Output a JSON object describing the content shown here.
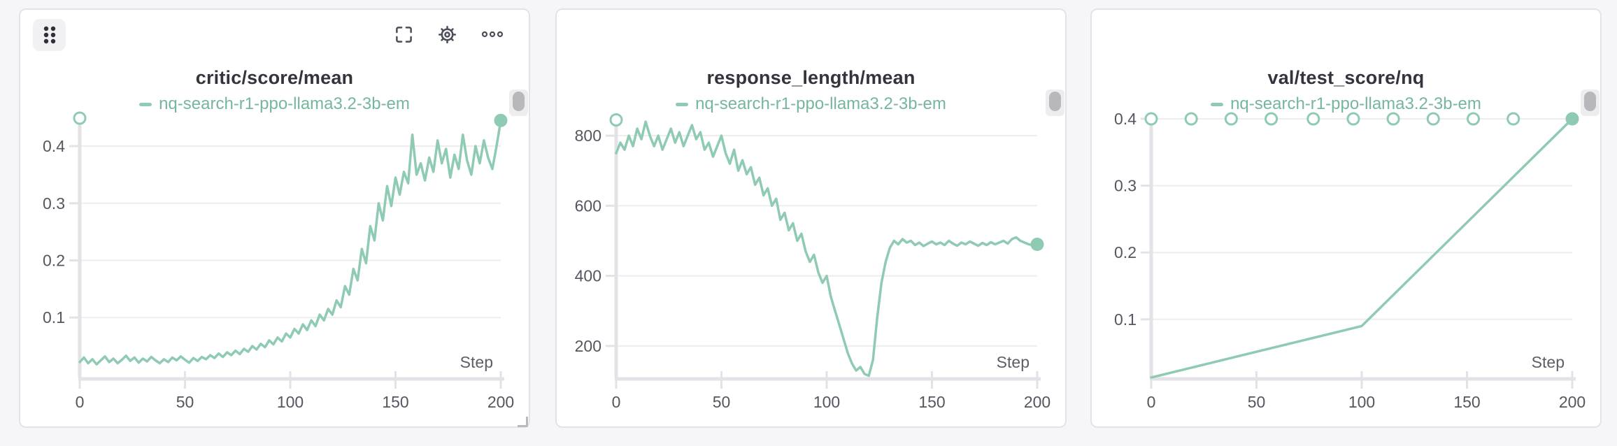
{
  "app": "run-metrics-dashboard",
  "run_name": "nq-search-r1-ppo-llama3.2-3b-em",
  "colors": {
    "line": "#8ecbb2",
    "legend_text": "#76b69d",
    "grid": "#ededf0",
    "axis": "#e3e3e7",
    "tick_label": "#55565f",
    "step_label": "#5d5e67",
    "title": "#33343c",
    "icon": "#4b4d57",
    "page_bg": "#f6f6f8",
    "panel_bg": "#ffffff",
    "panel_border": "#e3e3e7",
    "handle_bg": "#f1f1f3",
    "handle_dots": "#2f3037",
    "scroll_track": "#ededef",
    "scroll_thumb": "#b7b7bc"
  },
  "toolbar": {
    "drag_handle": "grip-handle",
    "fullscreen": "fullscreen-button",
    "settings": "settings-button",
    "more": "more-options-button"
  },
  "panels": [
    {
      "title": "critic/score/mean",
      "legend": "nq-search-r1-ppo-llama3.2-3b-em"
    },
    {
      "title": "response_length/mean",
      "legend": "nq-search-r1-ppo-llama3.2-3b-em"
    },
    {
      "title": "val/test_score/nq",
      "legend": "nq-search-r1-ppo-llama3.2-3b-em"
    }
  ],
  "chart_data": [
    {
      "type": "line",
      "title": "critic/score/mean",
      "xlabel": "Step",
      "legend": [
        "nq-search-r1-ppo-llama3.2-3b-em"
      ],
      "legend_position": "top",
      "grid": "horizontal",
      "xlim": [
        0,
        200
      ],
      "ylim": [
        -0.005,
        0.449
      ],
      "x_ticks": [
        0,
        50,
        100,
        150,
        200
      ],
      "y_ticks": [
        0.1,
        0.2,
        0.3,
        0.4
      ],
      "y_tick_labels": [
        "0.1",
        "0.2",
        "0.3",
        "0.4"
      ],
      "x": [
        0,
        2,
        4,
        6,
        8,
        10,
        12,
        14,
        16,
        18,
        20,
        22,
        24,
        26,
        28,
        30,
        32,
        34,
        36,
        38,
        40,
        42,
        44,
        46,
        48,
        50,
        52,
        54,
        56,
        58,
        60,
        62,
        64,
        66,
        68,
        70,
        72,
        74,
        76,
        78,
        80,
        82,
        84,
        86,
        88,
        90,
        92,
        94,
        96,
        98,
        100,
        102,
        104,
        106,
        108,
        110,
        112,
        114,
        116,
        118,
        120,
        122,
        124,
        126,
        128,
        130,
        132,
        134,
        136,
        138,
        140,
        142,
        144,
        146,
        148,
        150,
        152,
        154,
        156,
        158,
        160,
        162,
        164,
        166,
        168,
        170,
        172,
        174,
        176,
        178,
        180,
        182,
        184,
        186,
        188,
        190,
        192,
        194,
        196,
        198,
        200
      ],
      "values": [
        0.022,
        0.03,
        0.02,
        0.027,
        0.018,
        0.025,
        0.032,
        0.022,
        0.028,
        0.02,
        0.026,
        0.033,
        0.024,
        0.03,
        0.021,
        0.028,
        0.023,
        0.031,
        0.025,
        0.02,
        0.027,
        0.022,
        0.03,
        0.025,
        0.032,
        0.026,
        0.021,
        0.029,
        0.024,
        0.031,
        0.027,
        0.034,
        0.029,
        0.037,
        0.031,
        0.039,
        0.034,
        0.042,
        0.036,
        0.045,
        0.04,
        0.05,
        0.044,
        0.054,
        0.048,
        0.06,
        0.053,
        0.065,
        0.058,
        0.072,
        0.065,
        0.08,
        0.072,
        0.088,
        0.078,
        0.095,
        0.085,
        0.105,
        0.095,
        0.115,
        0.105,
        0.13,
        0.118,
        0.155,
        0.14,
        0.185,
        0.165,
        0.22,
        0.195,
        0.26,
        0.235,
        0.3,
        0.27,
        0.33,
        0.295,
        0.345,
        0.315,
        0.355,
        0.335,
        0.42,
        0.35,
        0.37,
        0.34,
        0.38,
        0.355,
        0.41,
        0.37,
        0.395,
        0.345,
        0.385,
        0.36,
        0.42,
        0.375,
        0.35,
        0.4,
        0.37,
        0.41,
        0.38,
        0.36,
        0.4,
        0.445
      ],
      "markers": {
        "hollow": [
          [
            0,
            0.449
          ]
        ],
        "filled": [
          [
            200,
            0.445
          ]
        ]
      }
    },
    {
      "type": "line",
      "title": "response_length/mean",
      "xlabel": "Step",
      "legend": [
        "nq-search-r1-ppo-llama3.2-3b-em"
      ],
      "legend_position": "top",
      "grid": "horizontal",
      "xlim": [
        0,
        200
      ],
      "ylim": [
        110,
        850
      ],
      "x_ticks": [
        0,
        50,
        100,
        150,
        200
      ],
      "y_ticks": [
        200,
        400,
        600,
        800
      ],
      "y_tick_labels": [
        "200",
        "400",
        "600",
        "800"
      ],
      "x": [
        0,
        2,
        4,
        6,
        8,
        10,
        12,
        14,
        16,
        18,
        20,
        22,
        24,
        26,
        28,
        30,
        32,
        34,
        36,
        38,
        40,
        42,
        44,
        46,
        48,
        50,
        52,
        54,
        56,
        58,
        60,
        62,
        64,
        66,
        68,
        70,
        72,
        74,
        76,
        78,
        80,
        82,
        84,
        86,
        88,
        90,
        92,
        94,
        96,
        98,
        100,
        102,
        104,
        106,
        108,
        110,
        112,
        114,
        116,
        118,
        120,
        122,
        124,
        126,
        128,
        130,
        132,
        134,
        136,
        138,
        140,
        142,
        144,
        146,
        148,
        150,
        152,
        154,
        156,
        158,
        160,
        162,
        164,
        166,
        168,
        170,
        172,
        174,
        176,
        178,
        180,
        182,
        184,
        186,
        188,
        190,
        192,
        194,
        196,
        198,
        200
      ],
      "values": [
        750,
        780,
        760,
        800,
        770,
        820,
        790,
        840,
        800,
        770,
        800,
        760,
        790,
        820,
        780,
        810,
        770,
        800,
        830,
        790,
        810,
        760,
        780,
        740,
        770,
        800,
        750,
        720,
        760,
        700,
        730,
        690,
        710,
        660,
        680,
        630,
        650,
        600,
        620,
        560,
        580,
        530,
        550,
        500,
        520,
        470,
        440,
        460,
        410,
        380,
        400,
        340,
        300,
        260,
        220,
        180,
        150,
        130,
        140,
        120,
        115,
        160,
        280,
        380,
        440,
        480,
        500,
        490,
        505,
        495,
        500,
        488,
        495,
        485,
        492,
        498,
        490,
        495,
        488,
        500,
        492,
        486,
        495,
        490,
        498,
        492,
        486,
        494,
        488,
        496,
        490,
        495,
        500,
        492,
        505,
        510,
        500,
        495,
        490,
        488,
        490
      ],
      "markers": {
        "hollow": [
          [
            0,
            845
          ]
        ],
        "filled": [
          [
            200,
            490
          ]
        ]
      }
    },
    {
      "type": "line",
      "title": "val/test_score/nq",
      "xlabel": "Step",
      "legend": [
        "nq-search-r1-ppo-llama3.2-3b-em"
      ],
      "legend_position": "top",
      "grid": "horizontal",
      "xlim": [
        0,
        200
      ],
      "ylim": [
        0.013,
        0.401
      ],
      "x_ticks": [
        0,
        50,
        100,
        150,
        200
      ],
      "y_ticks": [
        0.1,
        0.2,
        0.3,
        0.4
      ],
      "y_tick_labels": [
        "0.1",
        "0.2",
        "0.3",
        "0.4"
      ],
      "x": [
        0,
        100,
        200
      ],
      "values": [
        0.013,
        0.09,
        0.4
      ],
      "markers": {
        "hollow": [
          [
            0,
            0.4
          ],
          [
            19,
            0.4
          ],
          [
            38,
            0.4
          ],
          [
            57,
            0.4
          ],
          [
            77,
            0.4
          ],
          [
            96,
            0.4
          ],
          [
            115,
            0.4
          ],
          [
            134,
            0.4
          ],
          [
            153,
            0.4
          ],
          [
            172,
            0.4
          ]
        ],
        "filled": [
          [
            200,
            0.4
          ]
        ]
      }
    }
  ]
}
